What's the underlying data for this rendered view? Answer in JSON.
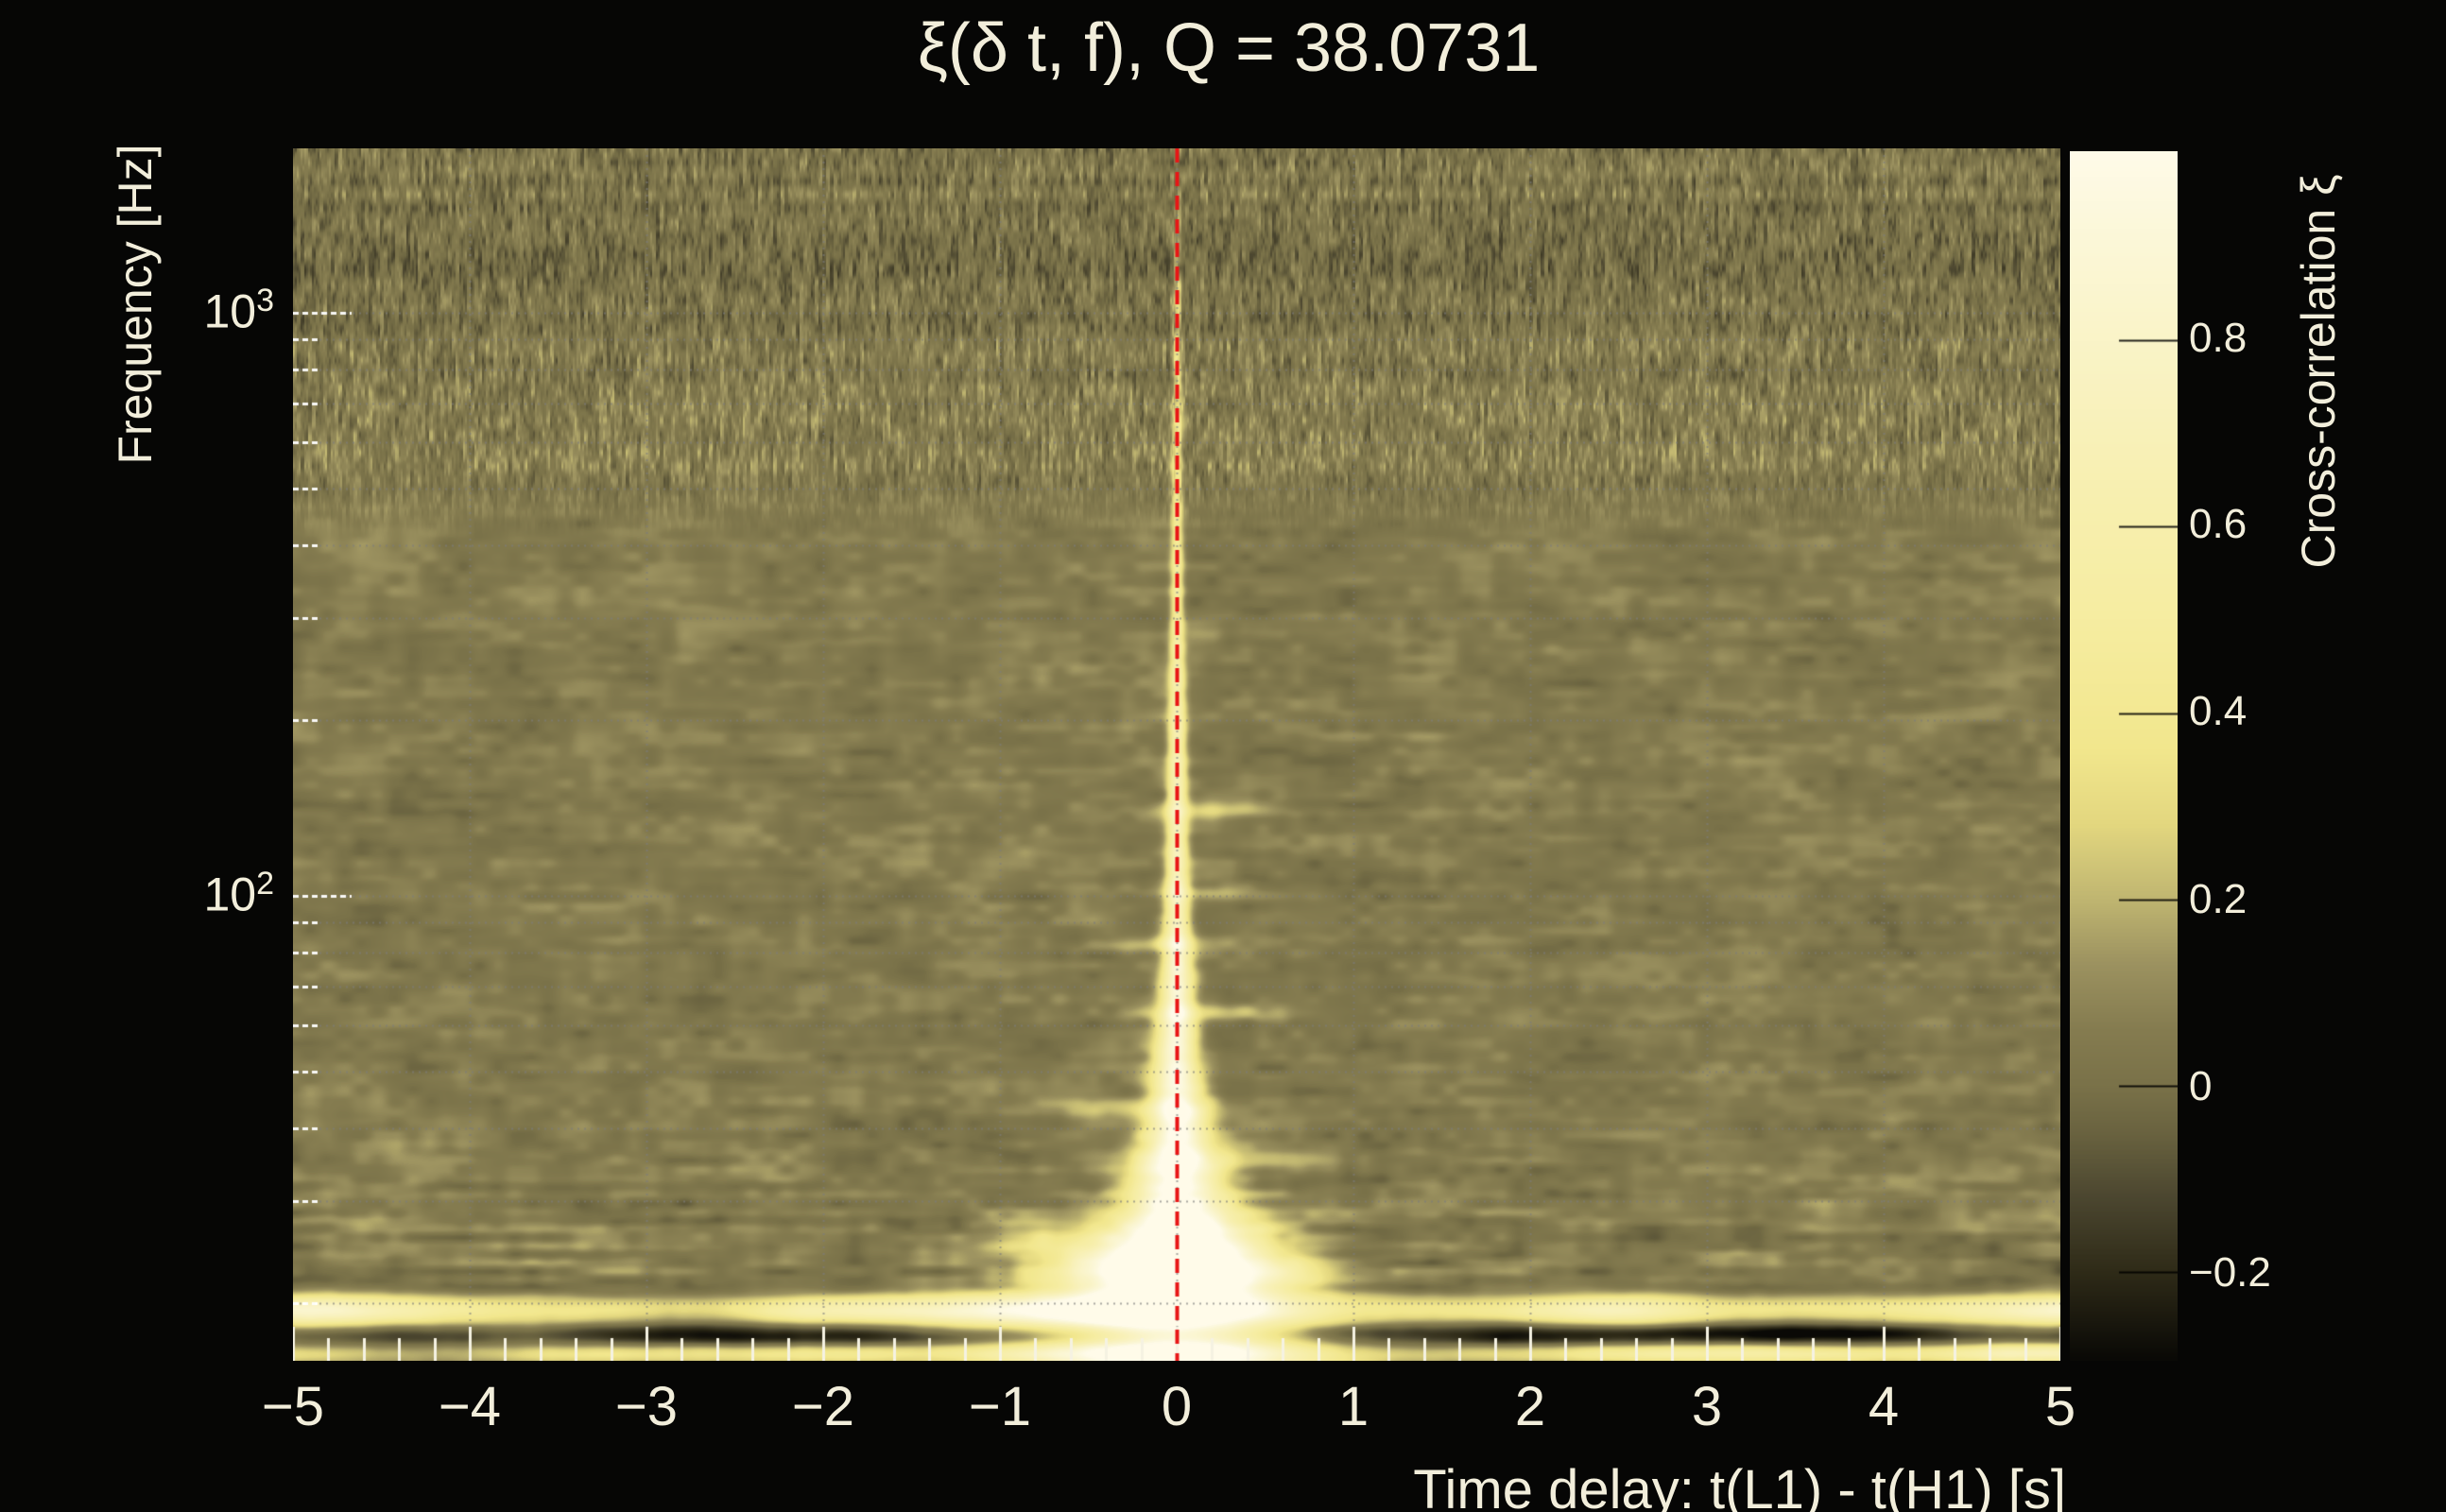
{
  "page": {
    "background": "#060605",
    "text_color": "#f2eedb"
  },
  "title": "ξ(δ t, f), Q = 38.0731",
  "axes": {
    "x": {
      "title": "Time delay: t(L1) - t(H1) [s]",
      "tick_labels": [
        "−5",
        "−4",
        "−3",
        "−2",
        "−1",
        "0",
        "1",
        "2",
        "3",
        "4",
        "5"
      ]
    },
    "y": {
      "title": "Frequency [Hz]",
      "tick_labels": [
        {
          "base": "10",
          "exp": "3"
        },
        {
          "base": "10",
          "exp": "2"
        }
      ]
    },
    "colorbar": {
      "title": "Cross-correlation ξ",
      "tick_labels": [
        "0.8",
        "0.6",
        "0.4",
        "0.2",
        "0",
        "−0.2"
      ]
    }
  },
  "chart_data": {
    "type": "heatmap",
    "title": "ξ(δ t, f), Q = 38.0731",
    "q_value": 38.0731,
    "xlabel": "Time delay: t(L1) - t(H1) [s]",
    "ylabel": "Frequency [Hz]",
    "zlabel": "Cross-correlation ξ",
    "x_range": [
      -5,
      5
    ],
    "x_major_ticks": [
      -5,
      -4,
      -3,
      -2,
      -1,
      0,
      1,
      2,
      3,
      4,
      5
    ],
    "x_minor_step": 0.2,
    "x_gridlines": [
      -4,
      -3,
      -2,
      -1,
      0,
      1,
      2,
      3,
      4
    ],
    "y_scale": "log",
    "y_range_hz": [
      15.95,
      1914
    ],
    "y_major_ticks_hz": [
      1000,
      100
    ],
    "y_minor_ticks_hz": [
      900,
      800,
      700,
      600,
      500,
      400,
      300,
      200,
      90,
      80,
      70,
      60,
      50,
      40,
      30,
      20
    ],
    "z_range": [
      -0.294,
      1.003
    ],
    "colorbar_ticks": [
      0.8,
      0.6,
      0.4,
      0.2,
      0,
      -0.2
    ],
    "marker_line": {
      "x": 0,
      "color": "#e81616",
      "style": "dashed"
    },
    "colormap": [
      [
        -0.294,
        "#0a0906"
      ],
      [
        -0.2,
        "#2f2b18"
      ],
      [
        -0.12,
        "#4c4730"
      ],
      [
        -0.05,
        "#6a6340"
      ],
      [
        0.0,
        "#7a7249"
      ],
      [
        0.06,
        "#857c50"
      ],
      [
        0.13,
        "#9c9260"
      ],
      [
        0.2,
        "#c0b671"
      ],
      [
        0.28,
        "#e3d77f"
      ],
      [
        0.36,
        "#f2e78d"
      ],
      [
        0.5,
        "#f6eda1"
      ],
      [
        0.65,
        "#f8f0b2"
      ],
      [
        0.8,
        "#faf4c8"
      ],
      [
        0.92,
        "#fcf8da"
      ],
      [
        1.003,
        "#fffbe9"
      ]
    ],
    "background_xi": 0.05,
    "high_freq_dark_band": {
      "logf_center": 3.1,
      "logf_sigma": 0.09,
      "amp": -0.055
    },
    "noise": {
      "top_speckle_amp": 0.105,
      "top_speckle_fine_amp": 0.05,
      "top_row_amp": 0.028,
      "low_blotch_amp": 0.05,
      "low_broad_amp": 0.042,
      "low_streak_amp": 0.03,
      "bottom_streak_extra": 0.06,
      "seed": 1234
    },
    "ridge": {
      "x_center": 0,
      "profile_y_amp_sigma": [
        [
          40,
          0.04,
          3
        ],
        [
          150,
          0.2,
          3.5
        ],
        [
          300,
          0.32,
          4
        ],
        [
          460,
          0.44,
          5
        ],
        [
          620,
          0.56,
          6.5
        ],
        [
          760,
          0.68,
          8
        ],
        [
          860,
          0.8,
          10.5
        ],
        [
          940,
          0.9,
          14
        ],
        [
          1010,
          0.97,
          19
        ],
        [
          1065,
          1.02,
          26
        ],
        [
          1110,
          1.07,
          36
        ],
        [
          1150,
          1.1,
          48
        ],
        [
          1192,
          1.07,
          66
        ],
        [
          1232,
          1.0,
          86
        ],
        [
          1283,
          0.93,
          104
        ]
      ]
    },
    "wings_y_dx_sx_sy_amp": [
      [
        700,
        30,
        55,
        6,
        0.16
      ],
      [
        788,
        25,
        52,
        6,
        0.2
      ],
      [
        842,
        -22,
        48,
        6,
        0.2
      ],
      [
        914,
        32,
        62,
        6,
        0.2
      ],
      [
        1016,
        -48,
        66,
        7,
        0.22
      ],
      [
        1070,
        58,
        78,
        8,
        0.22
      ],
      [
        1162,
        -100,
        75,
        22,
        0.28
      ],
      [
        1196,
        85,
        62,
        20,
        0.24
      ],
      [
        1205,
        -60,
        75,
        30,
        0.32
      ],
      [
        1168,
        62,
        58,
        28,
        0.28
      ]
    ],
    "bottom_bands": [
      {
        "center_from_bottom": 76,
        "sigma": 9,
        "amp": -0.1,
        "mod": 0
      },
      {
        "center_from_bottom": 53,
        "sigma": 13,
        "amp": 0.55,
        "mod": 1
      },
      {
        "center_from_bottom": 29,
        "sigma": 11,
        "amp": -0.3,
        "mod": 3
      },
      {
        "center_from_bottom": 9,
        "sigma": 8,
        "amp": 0.5,
        "mod": 2
      }
    ]
  }
}
